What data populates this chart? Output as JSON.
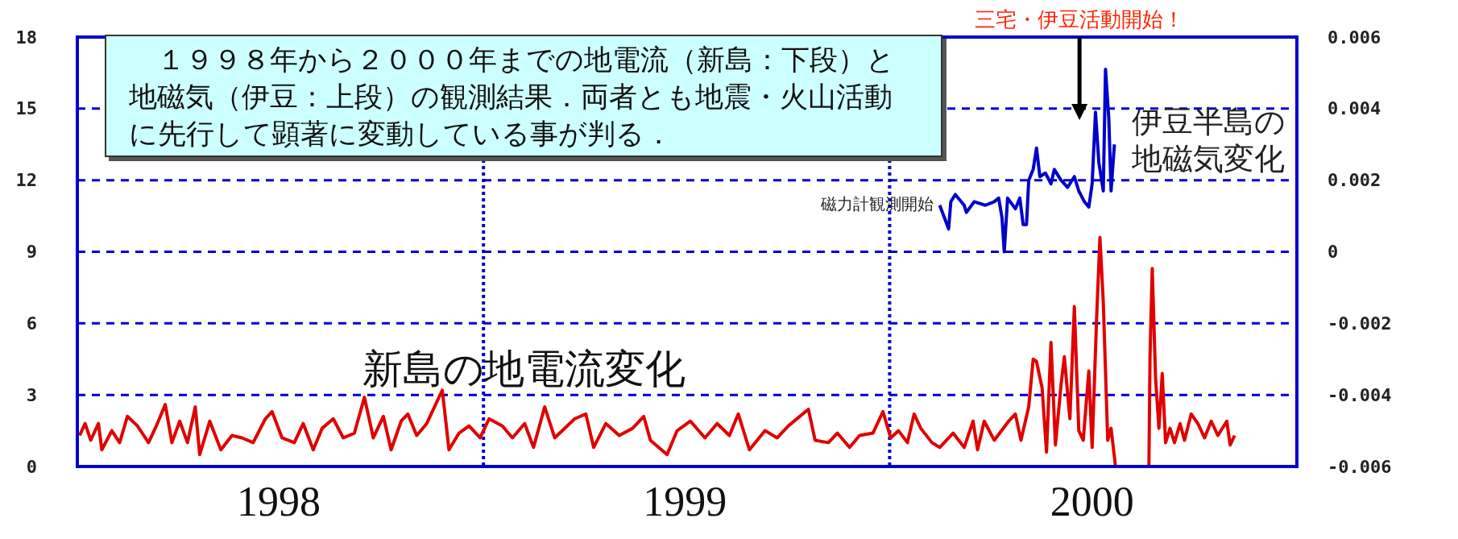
{
  "chart_data": {
    "type": "line",
    "annotations": [
      "１９９８年から２０００年までの地電流（新島：下段）と地磁気（伊豆：上段）の観測結果．両者とも地震・火山活動に先行して顕著に変動している事が判る．",
      "三宅・伊豆活動開始！",
      {
        "text": "磁力計観測開始",
        "x": "2000-02-15",
        "y": 11
      }
    ],
    "xlim": [
      "1998-01-01",
      "2001-01-01"
    ],
    "xticks": [
      {
        "value": "1998-07-01",
        "label": "1998"
      },
      {
        "value": "1999-07-01",
        "label": "1999"
      },
      {
        "value": "2000-07-01",
        "label": "2000"
      }
    ],
    "ylim": [
      0,
      18
    ],
    "yticks": [
      0,
      3,
      6,
      9,
      12,
      15,
      18
    ],
    "y2lim": [
      -0.006,
      0.006
    ],
    "y2ticks": [
      -0.006,
      -0.004,
      -0.002,
      0,
      0.002,
      0.004,
      0.006
    ],
    "grid": "y",
    "ref_lines": [
      {
        "axis": "x",
        "value": "1999-01-01",
        "color": "#0000cc",
        "line_style": "dotted"
      },
      {
        "axis": "x",
        "value": "2000-01-01",
        "color": "#0000cc",
        "line_style": "dotted"
      }
    ],
    "series": [
      {
        "name": "新島の地電流変化",
        "color": "#e00000",
        "x": [
          "1998-01-03",
          "1998-01-08",
          "1998-01-13",
          "1998-01-20",
          "1998-01-23",
          "1998-02-01",
          "1998-02-08",
          "1998-02-15",
          "1998-02-24",
          "1998-03-06",
          "1998-03-13",
          "1998-03-21",
          "1998-03-27",
          "1998-04-03",
          "1998-04-10",
          "1998-04-17",
          "1998-04-21",
          "1998-04-30",
          "1998-05-10",
          "1998-05-20",
          "1998-05-29",
          "1998-06-08",
          "1998-06-19",
          "1998-06-25",
          "1998-07-04",
          "1998-07-15",
          "1998-07-23",
          "1998-08-01",
          "1998-08-09",
          "1998-08-19",
          "1998-08-28",
          "1998-09-07",
          "1998-09-16",
          "1998-09-24",
          "1998-10-03",
          "1998-10-10",
          "1998-10-19",
          "1998-10-25",
          "1998-11-02",
          "1998-11-11",
          "1998-11-25",
          "1998-12-01",
          "1998-12-10",
          "1998-12-19",
          "1998-12-29",
          "1999-01-06",
          "1999-01-18",
          "1999-01-27",
          "1999-02-07",
          "1999-02-15",
          "1999-02-25",
          "1999-03-06",
          "1999-03-24",
          "1999-04-03",
          "1999-04-10",
          "1999-04-21",
          "1999-05-03",
          "1999-05-15",
          "1999-05-25",
          "1999-05-31",
          "1999-06-15",
          "1999-06-24",
          "1999-07-06",
          "1999-07-19",
          "1999-07-30",
          "1999-08-10",
          "1999-08-18",
          "1999-08-28",
          "1999-09-11",
          "1999-09-22",
          "1999-10-02",
          "1999-10-20",
          "1999-10-26",
          "1999-11-07",
          "1999-11-15",
          "1999-11-26",
          "1999-12-05",
          "1999-12-17",
          "1999-12-26",
          "2000-01-02",
          "2000-01-09",
          "2000-01-17",
          "2000-01-23",
          "2000-01-29",
          "2000-02-08",
          "2000-02-15",
          "2000-02-27",
          "2000-03-08",
          "2000-03-16",
          "2000-03-20",
          "2000-03-26",
          "2000-04-04",
          "2000-04-17",
          "2000-04-23",
          "2000-04-28",
          "2000-05-05",
          "2000-05-09",
          "2000-05-12",
          "2000-05-17",
          "2000-05-21",
          "2000-05-25",
          "2000-05-29",
          "2000-06-03",
          "2000-06-06",
          "2000-06-11",
          "2000-06-15",
          "2000-06-19",
          "2000-06-23",
          "2000-06-28",
          "2000-07-01",
          "2000-07-05",
          "2000-07-08",
          "2000-07-11",
          "2000-07-15",
          "2000-07-18",
          "2000-07-22",
          "2000-07-24",
          "2000-08-10",
          "2000-08-21",
          "2000-08-22",
          "2000-08-24",
          "2000-08-27",
          "2000-08-30",
          "2000-09-02",
          "2000-09-05",
          "2000-09-09",
          "2000-09-13",
          "2000-09-18",
          "2000-09-22",
          "2000-09-28",
          "2000-10-04",
          "2000-10-10",
          "2000-10-16",
          "2000-10-22",
          "2000-10-30",
          "2000-11-02",
          "2000-11-06"
        ],
        "values": [
          1.3,
          1.8,
          1.1,
          1.8,
          0.7,
          1.5,
          1.0,
          2.1,
          1.7,
          1.0,
          1.7,
          2.6,
          1.0,
          1.9,
          1.0,
          2.5,
          0.5,
          1.9,
          0.7,
          1.3,
          1.2,
          1.0,
          2.0,
          2.3,
          1.2,
          1.0,
          1.8,
          0.7,
          1.6,
          2.0,
          1.2,
          1.4,
          2.9,
          1.2,
          2.1,
          0.7,
          1.9,
          2.2,
          1.3,
          1.8,
          3.2,
          0.7,
          1.4,
          1.7,
          1.2,
          2.0,
          1.7,
          1.2,
          1.8,
          0.8,
          2.5,
          1.2,
          2.0,
          2.2,
          0.8,
          1.8,
          1.3,
          1.6,
          2.1,
          1.1,
          0.5,
          1.5,
          1.9,
          1.2,
          1.8,
          1.3,
          2.2,
          0.7,
          1.5,
          1.2,
          1.7,
          2.4,
          1.1,
          1.0,
          1.4,
          0.8,
          1.3,
          1.4,
          2.3,
          1.2,
          1.5,
          1.0,
          2.2,
          1.6,
          1.0,
          0.8,
          1.4,
          0.8,
          1.9,
          0.7,
          1.9,
          1.1,
          1.9,
          2.2,
          1.1,
          2.5,
          4.5,
          4.4,
          3.3,
          0.6,
          5.2,
          0.9,
          3.4,
          4.6,
          2.0,
          6.7,
          1.5,
          1.1,
          4.0,
          0.8,
          6.2,
          9.6,
          6.9,
          1.1,
          1.6,
          0.0,
          0.0,
          null,
          0.0,
          4.6,
          8.3,
          3.7,
          1.6,
          3.9,
          1.0,
          1.6,
          1.0,
          1.8,
          1.1,
          2.2,
          1.8,
          1.2,
          1.9,
          1.3,
          1.9,
          0.9,
          1.3
        ]
      },
      {
        "name": "伊豆半島の地磁気変化",
        "color": "#0000cc",
        "axis": "y2",
        "x": [
          "2000-02-15",
          "2000-02-23",
          "2000-02-25",
          "2000-02-29",
          "2000-03-08",
          "2000-03-10",
          "2000-03-17",
          "2000-03-27",
          "2000-04-04",
          "2000-04-08",
          "2000-04-11",
          "2000-04-13",
          "2000-04-16",
          "2000-04-23",
          "2000-04-27",
          "2000-04-30",
          "2000-05-03",
          "2000-05-05",
          "2000-05-09",
          "2000-05-12",
          "2000-05-15",
          "2000-05-20",
          "2000-05-25",
          "2000-05-28",
          "2000-06-03",
          "2000-06-09",
          "2000-06-15",
          "2000-06-19",
          "2000-06-24",
          "2000-06-28",
          "2000-07-01",
          "2000-07-04",
          "2000-07-07",
          "2000-07-11",
          "2000-07-13",
          "2000-07-16",
          "2000-07-18",
          "2000-07-21"
        ],
        "values": [
          0.0013,
          0.00064,
          0.0014,
          0.0016,
          0.0013,
          0.0011,
          0.0014,
          0.0013,
          0.0014,
          0.0015,
          0.00095,
          0,
          0.0015,
          0.0012,
          0.0015,
          0.00076,
          0.00076,
          0.002,
          0.0023,
          0.0029,
          0.0021,
          0.0022,
          0.0019,
          0.0023,
          0.002,
          0.0018,
          0.0021,
          0.0017,
          0.0014,
          0.00125,
          0.0019,
          0.0039,
          0.0025,
          0.0017,
          0.0051,
          0.0037,
          0.0017,
          0.003
        ]
      }
    ]
  }
}
